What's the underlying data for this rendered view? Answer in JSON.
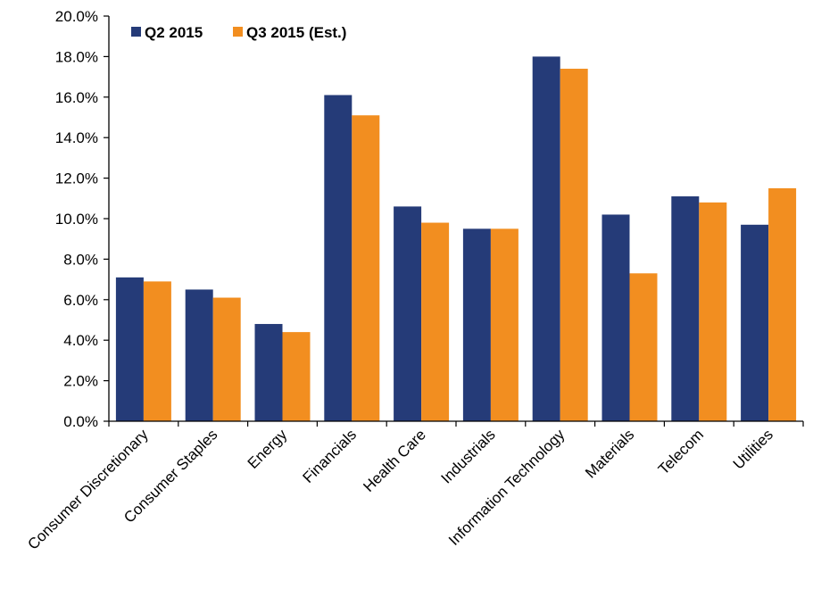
{
  "chart_data": {
    "type": "bar",
    "categories": [
      "Consumer Discretionary",
      "Consumer Staples",
      "Energy",
      "Financials",
      "Health Care",
      "Industrials",
      "Information Technology",
      "Materials",
      "Telecom",
      "Utilities"
    ],
    "series": [
      {
        "name": "Q2 2015",
        "color": "#253B78",
        "values": [
          7.1,
          6.5,
          4.8,
          16.1,
          10.6,
          9.5,
          18.0,
          10.2,
          11.1,
          9.7
        ]
      },
      {
        "name": "Q3 2015 (Est.)",
        "color": "#F28E20",
        "values": [
          6.9,
          6.1,
          4.4,
          15.1,
          9.8,
          9.5,
          17.4,
          7.3,
          10.8,
          11.5
        ]
      }
    ],
    "ylim": [
      0,
      20
    ],
    "ytick_step": 2,
    "ytick_labels": [
      "0.0%",
      "2.0%",
      "4.0%",
      "6.0%",
      "8.0%",
      "10.0%",
      "12.0%",
      "14.0%",
      "16.0%",
      "18.0%",
      "20.0%"
    ],
    "legend_position": "top-left",
    "grid": false,
    "title": "",
    "xlabel": "",
    "ylabel": ""
  }
}
